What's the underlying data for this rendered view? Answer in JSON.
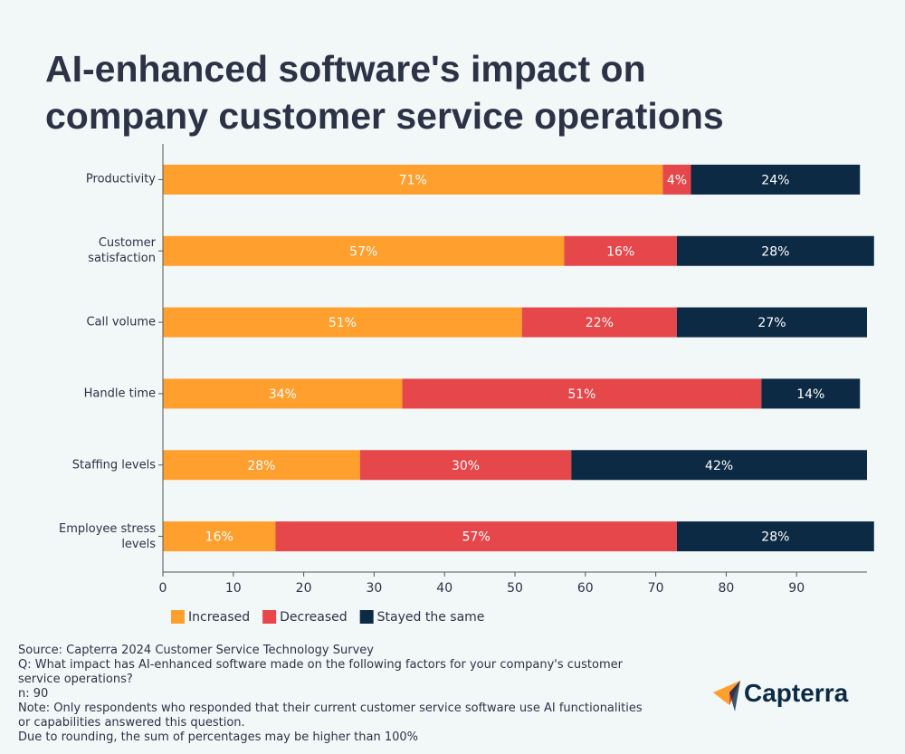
{
  "chart_data": {
    "type": "stacked-bar-horizontal",
    "title": "AI-enhanced software's impact on company customer service operations",
    "categories": [
      "Productivity",
      "Customer satisfaction",
      "Call volume",
      "Handle time",
      "Staffing levels",
      "Employee stress levels"
    ],
    "series": [
      {
        "name": "Increased",
        "color": "#ff9f2e",
        "values": [
          71,
          57,
          51,
          34,
          28,
          16
        ],
        "value_labels": [
          "71%",
          "57%",
          "51%",
          "34%",
          "28%",
          "16%"
        ]
      },
      {
        "name": "Decreased",
        "color": "#e5474b",
        "values": [
          4,
          16,
          22,
          51,
          30,
          57
        ],
        "value_labels": [
          "4%",
          "16%",
          "22%",
          "51%",
          "30%",
          "57%"
        ]
      },
      {
        "name": "Stayed the same",
        "color": "#0c2a44",
        "values": [
          24,
          28,
          27,
          14,
          42,
          28
        ],
        "value_labels": [
          "24%",
          "28%",
          "27%",
          "14%",
          "42%",
          "28%"
        ]
      }
    ],
    "xlim": [
      0,
      100
    ],
    "xticks": [
      0,
      10,
      20,
      30,
      40,
      50,
      60,
      70,
      80,
      90
    ],
    "notes": [
      "Source: Capterra 2024 Customer Service Technology Survey",
      "Q: What impact has AI-enhanced software made on the following factors for your company's customer service operations?",
      "n: 90",
      "Note: Only respondents who responded that their current customer service software use AI functionalities or capabilities answered this question.",
      "Due to rounding, the sum of percentages may be higher than 100%"
    ],
    "brand": "Capterra"
  }
}
